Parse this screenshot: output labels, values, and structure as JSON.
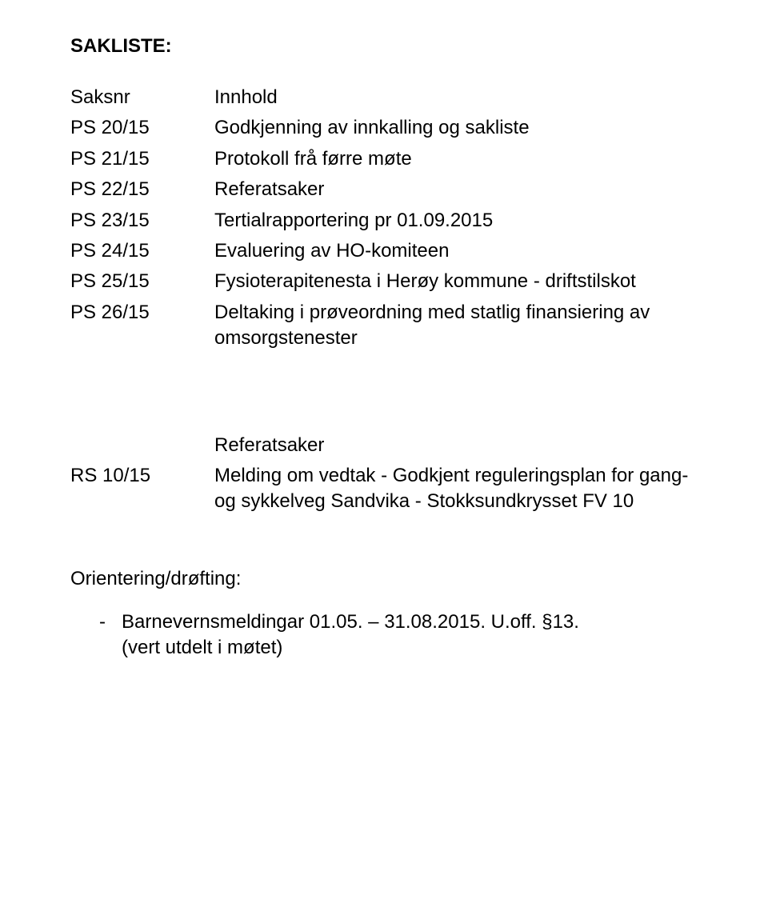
{
  "heading": "SAKLISTE:",
  "colhead": {
    "left": "Saksnr",
    "right": "Innhold"
  },
  "ps_rows": [
    {
      "id": "PS 20/15",
      "text": "Godkjenning av innkalling og sakliste"
    },
    {
      "id": "PS 21/15",
      "text": "Protokoll frå førre møte"
    },
    {
      "id": "PS 22/15",
      "text": "Referatsaker"
    },
    {
      "id": "PS 23/15",
      "text": "Tertialrapportering pr 01.09.2015"
    },
    {
      "id": "PS 24/15",
      "text": "Evaluering av HO-komiteen"
    },
    {
      "id": "PS 25/15",
      "text": "Fysioterapitenesta i Herøy kommune - driftstilskot"
    },
    {
      "id": "PS 26/15",
      "text": "Deltaking i prøveordning med statlig finansiering av omsorgstenester"
    }
  ],
  "rs_header": "Referatsaker",
  "rs_rows": [
    {
      "id": "RS 10/15",
      "text": "Melding om vedtak - Godkjent reguleringsplan for gang- og sykkelveg Sandvika - Stokksundkrysset FV 10"
    }
  ],
  "orient": {
    "heading": "Orientering/drøfting:",
    "line1": "Barnevernsmeldingar 01.05. – 31.08.2015.  U.off. §13.",
    "line2": "(vert utdelt i møtet)"
  }
}
